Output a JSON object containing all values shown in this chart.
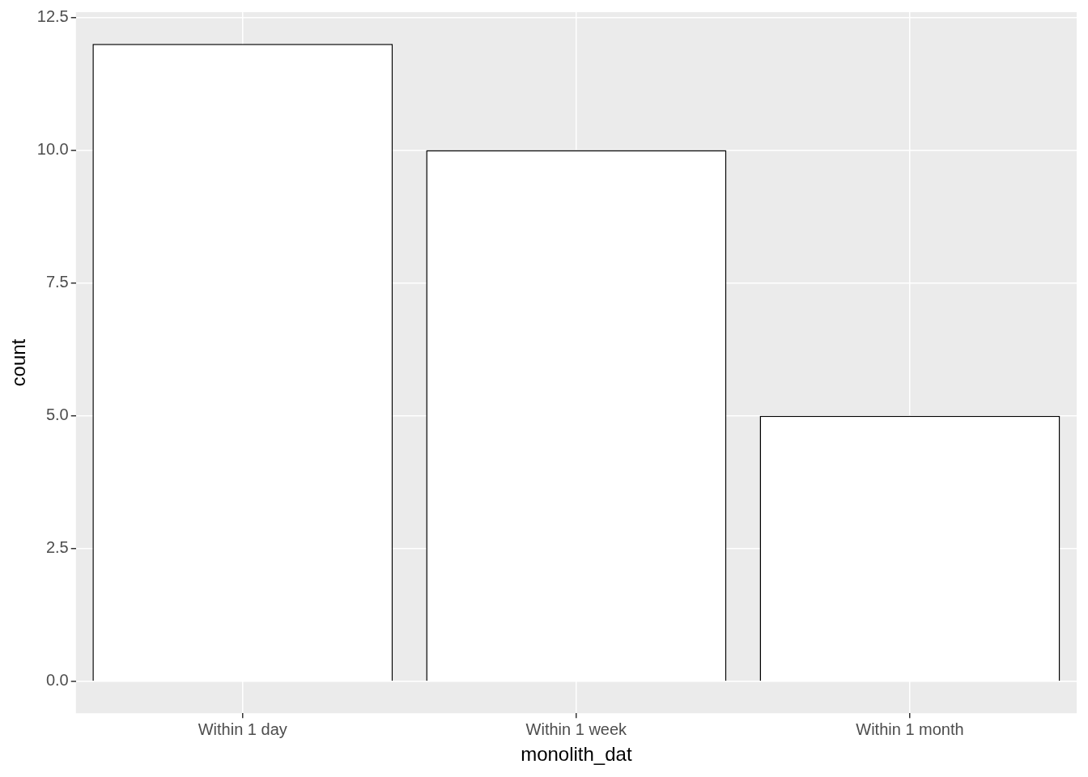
{
  "chart_data": {
    "type": "bar",
    "xlabel": "monolith_dat",
    "ylabel": "count",
    "categories": [
      "Within 1 day",
      "Within 1 week",
      "Within 1 month"
    ],
    "values": [
      12,
      10,
      5
    ],
    "color": "#ffffff",
    "ylim": [
      -0.6,
      12.6
    ],
    "yticks": [
      {
        "value": 0,
        "label": "0.0"
      },
      {
        "value": 2.5,
        "label": "2.5"
      },
      {
        "value": 5,
        "label": "5.0"
      },
      {
        "value": 7.5,
        "label": "7.5"
      },
      {
        "value": 10,
        "label": "10.0"
      },
      {
        "value": 12.5,
        "label": "12.5"
      }
    ],
    "grid": true,
    "legend": false
  }
}
